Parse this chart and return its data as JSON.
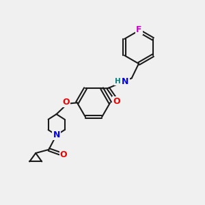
{
  "background_color": "#f0f0f0",
  "bond_color": "#1a1a1a",
  "bond_width": 1.5,
  "atom_colors": {
    "N": "#0000ee",
    "O": "#ee0000",
    "F": "#cc00cc",
    "H": "#008080",
    "C": "#1a1a1a"
  },
  "font_size": 8,
  "fig_size": [
    3.0,
    3.0
  ],
  "dpi": 100
}
